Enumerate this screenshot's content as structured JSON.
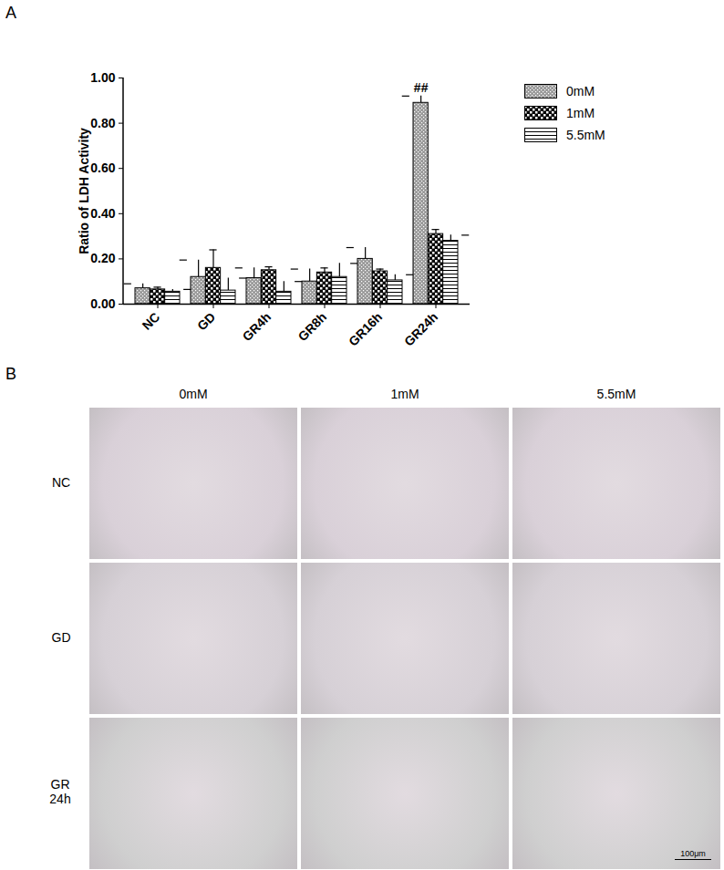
{
  "chart_data": {
    "type": "bar",
    "title": "A",
    "ylabel": "Ratio of LDH Activity",
    "categories": [
      "NC",
      "GD",
      "GR4h",
      "GR8h",
      "GR16h",
      "GR24h"
    ],
    "series": [
      {
        "name": "0mM",
        "color": "#9a9a9a",
        "values": [
          0.07,
          0.12,
          0.115,
          0.1,
          0.2,
          0.89
        ],
        "errors": [
          0.02,
          0.075,
          0.045,
          0.055,
          0.05,
          0.03
        ]
      },
      {
        "name": "1mM",
        "color": "#000000",
        "values": [
          0.065,
          0.16,
          0.15,
          0.14,
          0.145,
          0.31
        ],
        "errors": [
          0.01,
          0.08,
          0.015,
          0.02,
          0.01,
          0.02
        ]
      },
      {
        "name": "5.5mM",
        "color": "#ffffff",
        "values": [
          0.055,
          0.06,
          0.055,
          0.12,
          0.105,
          0.28
        ],
        "errors": [
          0.01,
          0.055,
          0.045,
          0.06,
          0.025,
          0.025
        ]
      }
    ],
    "ylim": [
      0,
      1.0
    ],
    "yticks": [
      {
        "value": 0,
        "label": "0.00"
      },
      {
        "value": 0.2,
        "label": "0.20"
      },
      {
        "value": 0.4,
        "label": "0.40"
      },
      {
        "value": 0.6,
        "label": "0.60"
      },
      {
        "value": 0.8,
        "label": "0.80"
      },
      {
        "value": 1.0,
        "label": "1.00"
      }
    ],
    "legend": "top-right",
    "annotations": [
      {
        "text": "##",
        "category": "GR24h",
        "series": "0mM"
      }
    ]
  },
  "image_panel": {
    "title": "B",
    "columns": [
      "0mM",
      "1mM",
      "5.5mM"
    ],
    "rows": [
      "NC",
      "GD",
      "GR 24h"
    ],
    "scale_bar": "100μm"
  }
}
